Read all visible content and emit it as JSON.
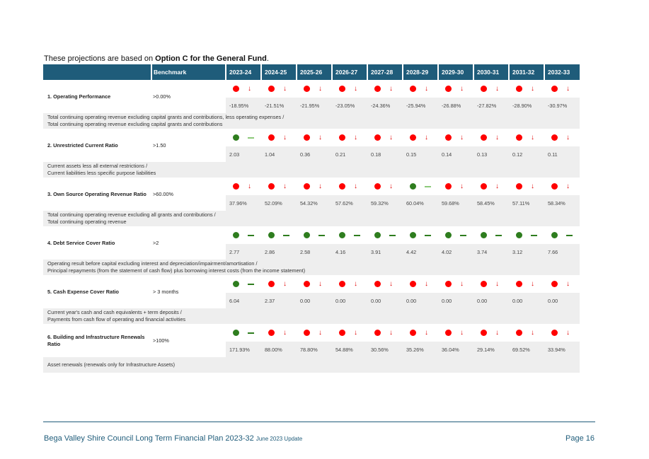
{
  "intro": {
    "prefix": "These projections are based on ",
    "bold": "Option C for the General Fund",
    "suffix": "."
  },
  "header": {
    "benchmark_label": "Benchmark",
    "years": [
      "2023-24",
      "2024-25",
      "2025-26",
      "2026-27",
      "2027-28",
      "2028-29",
      "2029-30",
      "2030-31",
      "2031-32",
      "2032-33"
    ]
  },
  "indicators": [
    {
      "name": "1. Operating Performance",
      "benchmark": ">0.00%",
      "values": [
        "-18.95%",
        "-21.51%",
        "-21.95%",
        "-23.05%",
        "-24.36%",
        "-25.94%",
        "-26.88%",
        "-27.82%",
        "-28.90%",
        "-30.97%"
      ],
      "status": [
        "red",
        "red",
        "red",
        "red",
        "red",
        "red",
        "red",
        "red",
        "red",
        "red"
      ],
      "trend": [
        "down",
        "down",
        "down",
        "down",
        "down",
        "down",
        "down",
        "down",
        "down",
        "down"
      ],
      "definition": [
        "Total continuing operating revenue excluding capital grants and contributions, less operating expenses /",
        "Total continuing operating revenue excluding capital grants and contributions"
      ]
    },
    {
      "name": "2. Unrestricted Current Ratio",
      "benchmark": ">1.50",
      "values": [
        "2.03",
        "1.04",
        "0.36",
        "0.21",
        "0.18",
        "0.15",
        "0.14",
        "0.13",
        "0.12",
        "0.11"
      ],
      "status": [
        "green",
        "red",
        "red",
        "red",
        "red",
        "red",
        "red",
        "red",
        "red",
        "red"
      ],
      "trend": [
        "flat-light",
        "down",
        "down",
        "down",
        "down",
        "down",
        "down",
        "down",
        "down",
        "down"
      ],
      "definition": [
        "Current assets less all external restrictions /",
        "Current liabilities less specific purpose liabilities"
      ]
    },
    {
      "name": "3. Own Source Operating Revenue Ratio",
      "benchmark": ">60.00%",
      "values": [
        "37.96%",
        "52.09%",
        "54.32%",
        "57.62%",
        "59.32%",
        "60.04%",
        "59.68%",
        "58.45%",
        "57.11%",
        "58.34%"
      ],
      "status": [
        "red",
        "red",
        "red",
        "red",
        "red",
        "green",
        "red",
        "red",
        "red",
        "red"
      ],
      "trend": [
        "down",
        "down",
        "down",
        "down",
        "down",
        "flat-light",
        "down",
        "down",
        "down",
        "down"
      ],
      "definition": [
        "Total continuing operating revenue excluding all grants and contributions /",
        "Total continuing operating revenue"
      ]
    },
    {
      "name": "4. Debt Service Cover Ratio",
      "benchmark": ">2",
      "values": [
        "2.77",
        "2.86",
        "2.58",
        "4.16",
        "3.91",
        "4.42",
        "4.02",
        "3.74",
        "3.12",
        "7.66"
      ],
      "status": [
        "green",
        "green",
        "green",
        "green",
        "green",
        "green",
        "green",
        "green",
        "green",
        "green"
      ],
      "trend": [
        "flat",
        "flat",
        "flat",
        "flat",
        "flat",
        "flat",
        "flat",
        "flat",
        "flat",
        "flat"
      ],
      "definition": [
        "Operating result before capital excluding interest and depreciation/impairment/amortisation /",
        "Principal repayments (from the statement of cash flow) plus borrowing interest costs (from the income statement)"
      ]
    },
    {
      "name": "5. Cash Expense Cover Ratio",
      "benchmark": "> 3 months",
      "values": [
        "6.04",
        "2.37",
        "0.00",
        "0.00",
        "0.00",
        "0.00",
        "0.00",
        "0.00",
        "0.00",
        "0.00"
      ],
      "status": [
        "green",
        "red",
        "red",
        "red",
        "red",
        "red",
        "red",
        "red",
        "red",
        "red"
      ],
      "trend": [
        "flat",
        "down",
        "down",
        "down",
        "down",
        "down",
        "down",
        "down",
        "down",
        "down"
      ],
      "definition": [
        "Current year's cash and cash equivalents + term deposits /",
        "Payments from cash flow of operating and financial activities"
      ]
    },
    {
      "name": "6. Building and Infrastructure Renewals Ratio",
      "benchmark": ">100%",
      "values": [
        "171.93%",
        "88.00%",
        "78.80%",
        "54.88%",
        "30.56%",
        "35.26%",
        "36.04%",
        "29.14%",
        "69.52%",
        "33.94%"
      ],
      "status": [
        "green",
        "red",
        "red",
        "red",
        "red",
        "red",
        "red",
        "red",
        "red",
        "red"
      ],
      "trend": [
        "flat",
        "down",
        "down",
        "down",
        "down",
        "down",
        "down",
        "down",
        "down",
        "down"
      ],
      "definition": [
        "Asset renewals (renewals only for Infrastructure Assets)"
      ]
    }
  ],
  "footer": {
    "title": "Bega Valley Shire Council Long Term Financial Plan 2023-32",
    "subtitle": "June 2023 Update",
    "page": "Page 16"
  },
  "colors": {
    "header_bg": "#1f5c7a",
    "red": "#ff0000",
    "green": "#2e7d1e",
    "arrow": "#e00000",
    "row_shade": "#eeeeee"
  }
}
